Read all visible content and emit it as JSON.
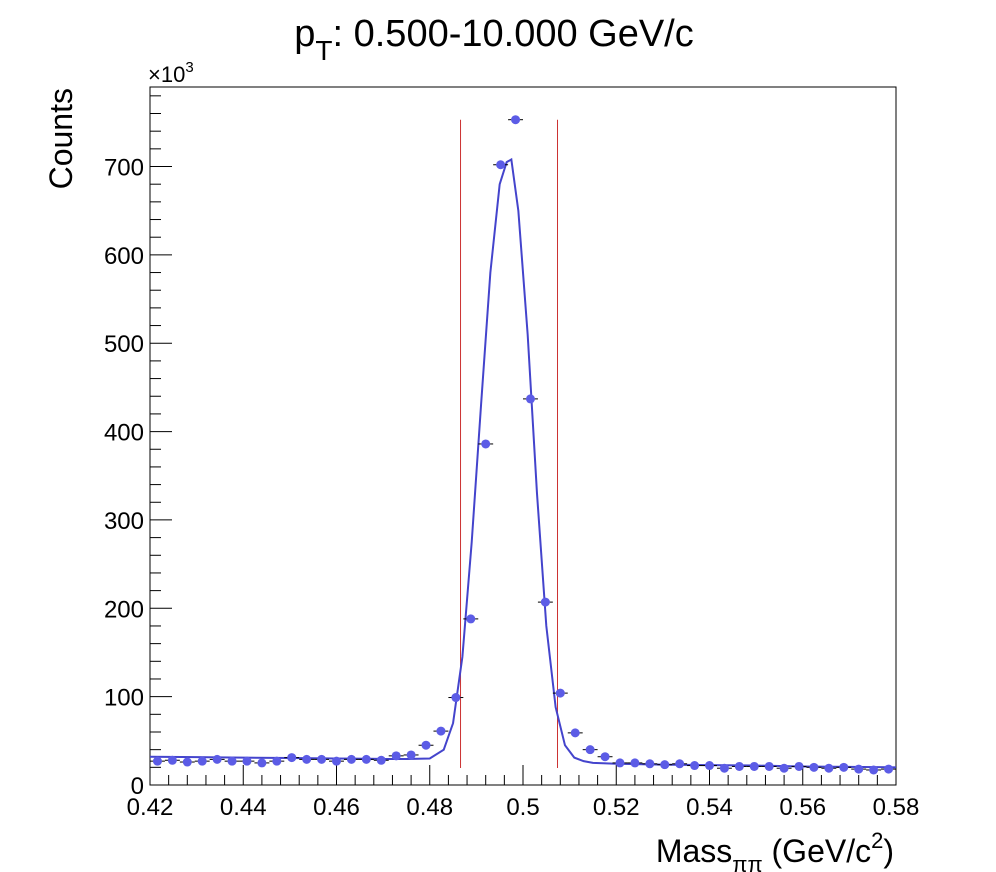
{
  "chart_data": {
    "type": "scatter",
    "title": "p_T: 0.500-10.000 GeV/c",
    "title_main": "p",
    "title_sub": "T",
    "title_rest": ": 0.500-10.000 GeV/c",
    "ylabel": "Counts",
    "xlabel": "Mass_ππ (GeV/c^2)",
    "xlabel_main": "Mass",
    "xlabel_sub": "ππ",
    "xlabel_rest": " (GeV/c",
    "xlabel_sup": "2",
    "xlabel_end": ")",
    "y_multiplier": "×10",
    "y_multiplier_exp": "3",
    "xlim": [
      0.42,
      0.58
    ],
    "ylim": [
      0,
      790
    ],
    "x_ticks": [
      "0.42",
      "0.44",
      "0.46",
      "0.48",
      "0.5",
      "0.52",
      "0.54",
      "0.56",
      "0.58"
    ],
    "y_ticks": [
      "0",
      "100",
      "200",
      "300",
      "400",
      "500",
      "600",
      "700"
    ],
    "grid": false,
    "marker_color": "#5c5ce6",
    "fit_color": "#4444cc",
    "window_color": "#cc3333",
    "bin_width": 0.0032,
    "series": [
      {
        "x": [
          0.4216,
          0.4248,
          0.428,
          0.4312,
          0.4344,
          0.4376,
          0.4408,
          0.444,
          0.4472,
          0.4504,
          0.4536,
          0.4568,
          0.46,
          0.4632,
          0.4664,
          0.4696,
          0.4728,
          0.476,
          0.4792,
          0.4824,
          0.4856,
          0.4888,
          0.492,
          0.4952,
          0.4984,
          0.5016,
          0.5048,
          0.508,
          0.5112,
          0.5144,
          0.5176,
          0.5208,
          0.524,
          0.5272,
          0.5304,
          0.5336,
          0.5368,
          0.54,
          0.5432,
          0.5464,
          0.5496,
          0.5528,
          0.556,
          0.5592,
          0.5624,
          0.5656,
          0.5688,
          0.572,
          0.5752,
          0.5784
        ],
        "y": [
          27,
          28,
          26,
          27,
          29,
          27,
          27,
          25,
          27,
          31,
          29,
          29,
          27,
          29,
          29,
          28,
          33,
          34,
          45,
          61,
          99,
          188,
          386,
          702,
          753,
          437,
          207,
          104,
          59,
          40,
          32,
          25,
          25,
          24,
          23,
          24,
          22,
          22,
          19,
          21,
          21,
          21,
          19,
          21,
          20,
          19,
          20,
          18,
          17,
          18
        ]
      }
    ],
    "fit": {
      "x": [
        0.42,
        0.43,
        0.44,
        0.45,
        0.46,
        0.47,
        0.475,
        0.48,
        0.483,
        0.485,
        0.487,
        0.489,
        0.491,
        0.493,
        0.495,
        0.4965,
        0.4975,
        0.499,
        0.501,
        0.503,
        0.505,
        0.507,
        0.509,
        0.511,
        0.513,
        0.515,
        0.52,
        0.53,
        0.54,
        0.55,
        0.56,
        0.57,
        0.58
      ],
      "y": [
        32,
        31.5,
        31,
        30.5,
        30,
        29.5,
        29.5,
        30,
        40,
        70,
        145,
        275,
        430,
        580,
        680,
        705,
        708,
        650,
        510,
        330,
        180,
        88,
        45,
        31,
        27,
        25,
        24,
        23,
        22.5,
        22,
        21,
        20.5,
        20
      ]
    },
    "window": {
      "x1": 0.4866,
      "x2": 0.5074,
      "y_top": 753
    }
  }
}
